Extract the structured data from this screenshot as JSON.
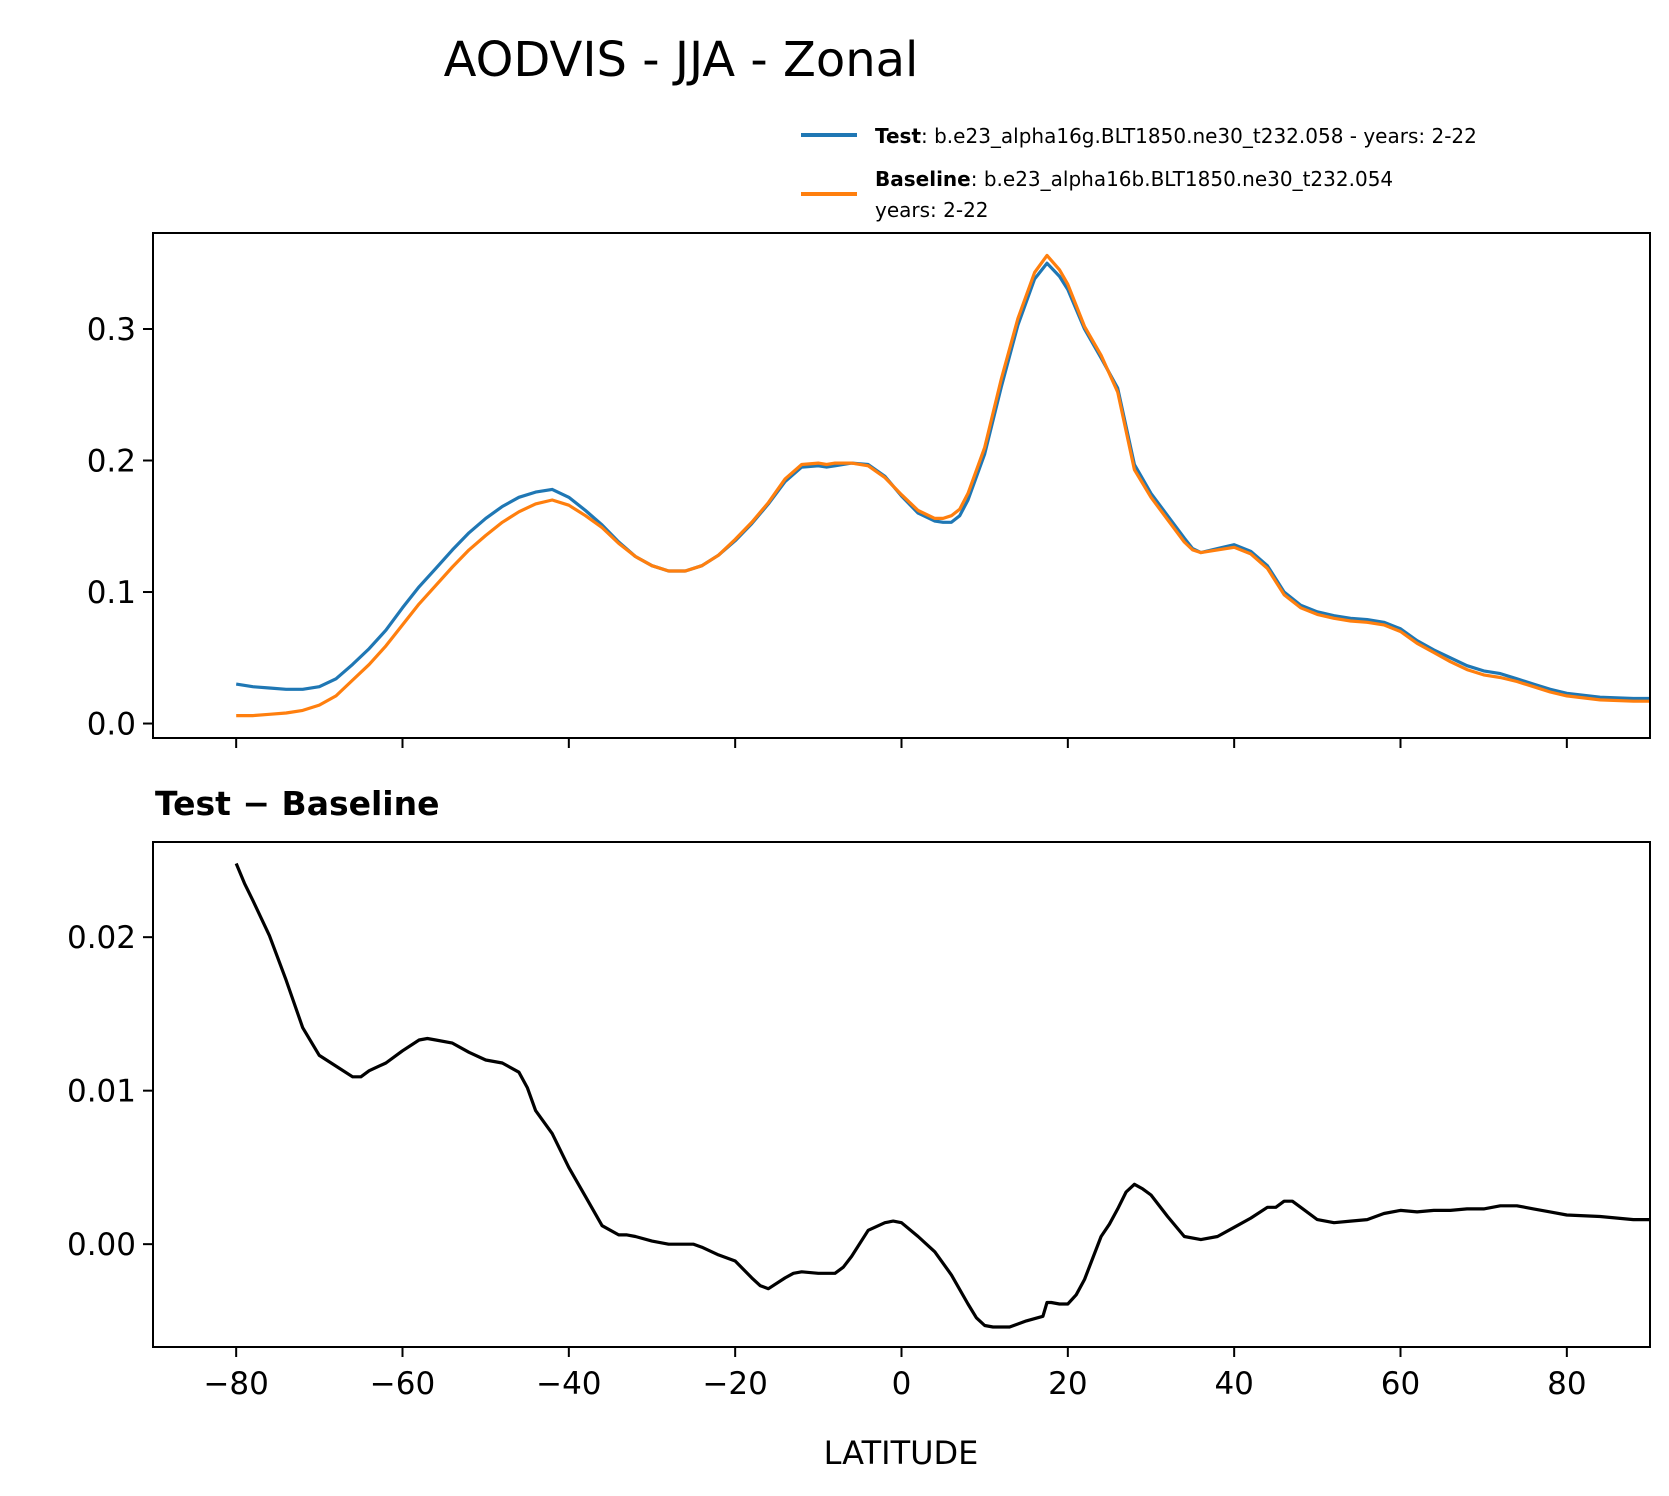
{
  "chart_data": {
    "title": "AODVIS - JJA - Zonal",
    "xlabel": "LATITUDE",
    "xlim": [
      -90,
      90
    ],
    "xticks": [
      -80,
      -60,
      -40,
      -20,
      0,
      20,
      40,
      60,
      80
    ],
    "xtick_labels": [
      "−80",
      "−60",
      "−40",
      "−20",
      "0",
      "20",
      "40",
      "60",
      "80"
    ],
    "panels": [
      {
        "type": "line",
        "title": "",
        "ylim": [
          -0.011,
          0.373
        ],
        "yticks": [
          0.0,
          0.1,
          0.2,
          0.3
        ],
        "ytick_labels": [
          "0.0",
          "0.1",
          "0.2",
          "0.3"
        ],
        "legend": {
          "position": "above-right",
          "entries": [
            {
              "bold": "Test",
              "text": ": b.e23_alpha16g.BLT1850.ne30_t232.058 - years: 2-22",
              "line2": "",
              "color": "#1f77b4"
            },
            {
              "bold": "Baseline",
              "text": ": b.e23_alpha16b.BLT1850.ne30_t232.054",
              "line2": "years: 2-22",
              "color": "#ff7f0e"
            }
          ]
        },
        "series": [
          {
            "name": "Test",
            "color": "#1f77b4",
            "x": [
              -80,
              -78,
              -76,
              -74,
              -72,
              -70,
              -68,
              -66,
              -64,
              -62,
              -60,
              -58,
              -56,
              -54,
              -52,
              -50,
              -48,
              -46,
              -44,
              -42,
              -40,
              -38,
              -36,
              -34,
              -32,
              -30,
              -28,
              -26,
              -24,
              -22,
              -20,
              -18,
              -16,
              -14,
              -12,
              -10,
              -9,
              -8,
              -6,
              -4,
              -2,
              0,
              2,
              4,
              5,
              6,
              7,
              8,
              10,
              12,
              14,
              16,
              17.5,
              19,
              20,
              22,
              24,
              26,
              28,
              30,
              32,
              34,
              35,
              36,
              38,
              40,
              42,
              44,
              46,
              48,
              50,
              52,
              54,
              56,
              58,
              60,
              62,
              64,
              66,
              68,
              70,
              72,
              74,
              76,
              78,
              80,
              84,
              88,
              90
            ],
            "y": [
              0.03,
              0.028,
              0.027,
              0.026,
              0.026,
              0.028,
              0.034,
              0.045,
              0.057,
              0.071,
              0.088,
              0.104,
              0.118,
              0.132,
              0.145,
              0.156,
              0.165,
              0.172,
              0.176,
              0.178,
              0.172,
              0.162,
              0.151,
              0.138,
              0.127,
              0.12,
              0.116,
              0.116,
              0.12,
              0.128,
              0.139,
              0.152,
              0.167,
              0.184,
              0.195,
              0.196,
              0.195,
              0.196,
              0.198,
              0.197,
              0.188,
              0.173,
              0.16,
              0.154,
              0.153,
              0.153,
              0.158,
              0.17,
              0.205,
              0.256,
              0.303,
              0.338,
              0.35,
              0.34,
              0.33,
              0.3,
              0.278,
              0.255,
              0.197,
              0.175,
              0.158,
              0.141,
              0.133,
              0.13,
              0.133,
              0.136,
              0.131,
              0.12,
              0.1,
              0.09,
              0.085,
              0.082,
              0.08,
              0.079,
              0.077,
              0.072,
              0.063,
              0.056,
              0.05,
              0.044,
              0.04,
              0.038,
              0.034,
              0.03,
              0.026,
              0.023,
              0.02,
              0.019,
              0.019
            ]
          },
          {
            "name": "Baseline",
            "color": "#ff7f0e",
            "x": [
              -80,
              -78,
              -76,
              -74,
              -72,
              -70,
              -68,
              -66,
              -64,
              -62,
              -60,
              -58,
              -56,
              -54,
              -52,
              -50,
              -48,
              -46,
              -44,
              -42,
              -40,
              -38,
              -36,
              -34,
              -32,
              -30,
              -28,
              -26,
              -24,
              -22,
              -20,
              -18,
              -16,
              -14,
              -12,
              -10,
              -9,
              -8,
              -6,
              -4,
              -2,
              0,
              2,
              4,
              5,
              6,
              7,
              8,
              10,
              12,
              14,
              16,
              17.5,
              19,
              20,
              22,
              24,
              26,
              28,
              30,
              32,
              34,
              35,
              36,
              38,
              40,
              42,
              44,
              46,
              48,
              50,
              52,
              54,
              56,
              58,
              60,
              62,
              64,
              66,
              68,
              70,
              72,
              74,
              76,
              78,
              80,
              84,
              88,
              90
            ],
            "y": [
              0.006,
              0.006,
              0.007,
              0.008,
              0.01,
              0.014,
              0.021,
              0.033,
              0.045,
              0.059,
              0.075,
              0.091,
              0.105,
              0.119,
              0.132,
              0.143,
              0.153,
              0.161,
              0.167,
              0.17,
              0.166,
              0.158,
              0.149,
              0.137,
              0.127,
              0.12,
              0.116,
              0.116,
              0.12,
              0.128,
              0.14,
              0.153,
              0.168,
              0.186,
              0.197,
              0.198,
              0.197,
              0.198,
              0.198,
              0.196,
              0.187,
              0.174,
              0.162,
              0.156,
              0.156,
              0.158,
              0.163,
              0.175,
              0.21,
              0.262,
              0.308,
              0.343,
              0.356,
              0.345,
              0.334,
              0.302,
              0.28,
              0.252,
              0.193,
              0.172,
              0.155,
              0.138,
              0.132,
              0.13,
              0.132,
              0.134,
              0.129,
              0.118,
              0.098,
              0.088,
              0.083,
              0.08,
              0.078,
              0.077,
              0.075,
              0.07,
              0.061,
              0.054,
              0.047,
              0.041,
              0.037,
              0.035,
              0.032,
              0.028,
              0.024,
              0.021,
              0.018,
              0.017,
              0.017
            ]
          }
        ]
      },
      {
        "type": "line",
        "title": "Test − Baseline",
        "ylim": [
          -0.0067,
          0.0262
        ],
        "yticks": [
          0.0,
          0.01,
          0.02
        ],
        "ytick_labels": [
          "0.00",
          "0.01",
          "0.02"
        ],
        "series": [
          {
            "name": "",
            "color": "#000000",
            "x": [
              -80,
              -79,
              -78,
              -76,
              -74,
              -72,
              -70,
              -68,
              -66,
              -65,
              -64,
              -62,
              -60,
              -58,
              -57,
              -56,
              -54,
              -52,
              -50,
              -48,
              -46,
              -45,
              -44,
              -42,
              -40,
              -38,
              -36,
              -34,
              -33,
              -32,
              -30,
              -28,
              -26,
              -25,
              -24,
              -22,
              -20,
              -18,
              -17,
              -16,
              -14,
              -13,
              -12,
              -10,
              -8,
              -7,
              -6,
              -4,
              -2,
              -1,
              0,
              2,
              4,
              6,
              8,
              9,
              10,
              11,
              13,
              15,
              17,
              17.5,
              18,
              19,
              20,
              21,
              22,
              24,
              25,
              26,
              27,
              28,
              29,
              30,
              32,
              34,
              36,
              38,
              40,
              42,
              44,
              45,
              46,
              47,
              48,
              50,
              52,
              54,
              56,
              58,
              60,
              62,
              64,
              66,
              68,
              70,
              72,
              74,
              76,
              78,
              80,
              84,
              88,
              90
            ],
            "y": [
              0.0248,
              0.0235,
              0.0224,
              0.0201,
              0.0172,
              0.0141,
              0.0123,
              0.0116,
              0.0109,
              0.0109,
              0.0113,
              0.0118,
              0.0126,
              0.0133,
              0.0134,
              0.0133,
              0.0131,
              0.0125,
              0.012,
              0.0118,
              0.0112,
              0.0102,
              0.0087,
              0.0072,
              0.005,
              0.0031,
              0.0012,
              0.0006,
              0.0006,
              0.0005,
              0.0002,
              0.0,
              0.0,
              0.0,
              -0.0002,
              -0.0007,
              -0.0011,
              -0.0022,
              -0.0027,
              -0.0029,
              -0.0022,
              -0.0019,
              -0.0018,
              -0.0019,
              -0.0019,
              -0.0015,
              -0.0008,
              0.0009,
              0.0014,
              0.0015,
              0.0014,
              0.0005,
              -0.0005,
              -0.002,
              -0.0039,
              -0.0048,
              -0.0053,
              -0.0054,
              -0.0054,
              -0.005,
              -0.0047,
              -0.0038,
              -0.0038,
              -0.0039,
              -0.0039,
              -0.0033,
              -0.0023,
              0.0005,
              0.0013,
              0.0023,
              0.0034,
              0.0039,
              0.0036,
              0.0032,
              0.0018,
              0.0005,
              0.0003,
              0.0005,
              0.0011,
              0.0017,
              0.0024,
              0.0024,
              0.0028,
              0.0028,
              0.0024,
              0.0016,
              0.0014,
              0.0015,
              0.0016,
              0.002,
              0.0022,
              0.0021,
              0.0022,
              0.0022,
              0.0023,
              0.0023,
              0.0025,
              0.0025,
              0.0023,
              0.0021,
              0.0019,
              0.0018,
              0.0016,
              0.0016
            ]
          }
        ]
      }
    ]
  }
}
